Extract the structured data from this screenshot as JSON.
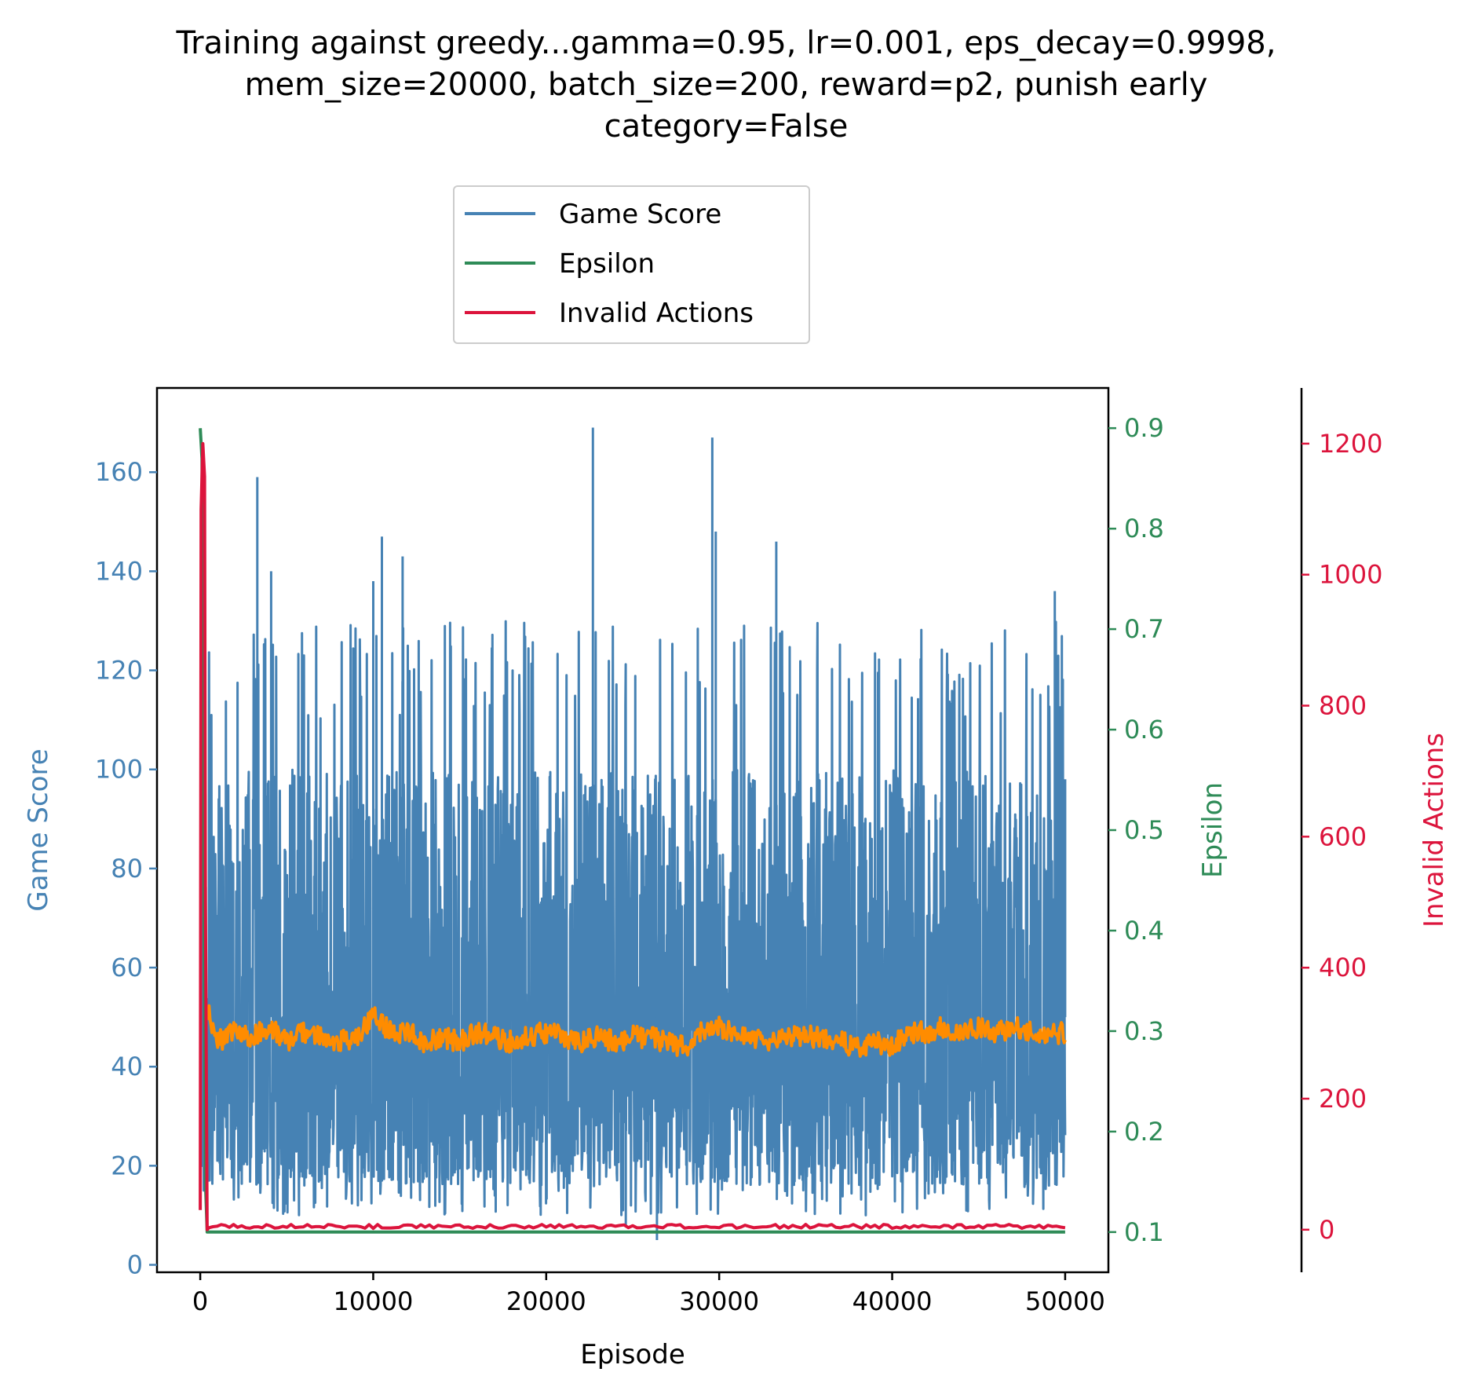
{
  "chart_data": {
    "type": "line",
    "title_lines": [
      "Training against greedy...gamma=0.95, lr=0.001, eps_decay=0.9998,",
      "mem_size=20000, batch_size=200, reward=p2, punish early",
      "category=False"
    ],
    "xlabel": "Episode",
    "xlim": [
      -2500,
      52500
    ],
    "xticks": [
      0,
      10000,
      20000,
      30000,
      40000,
      50000
    ],
    "axes": {
      "score": {
        "label": "Game Score",
        "color": "#4682b4",
        "ylim": [
          -1.5,
          177
        ],
        "ticks": [
          0,
          20,
          40,
          60,
          80,
          100,
          120,
          140,
          160
        ]
      },
      "epsilon": {
        "label": "Epsilon",
        "color": "#2e8b57",
        "ylim": [
          0.06,
          0.94
        ],
        "ticks": [
          0.1,
          0.2,
          0.3,
          0.4,
          0.5,
          0.6,
          0.7,
          0.8,
          0.9
        ]
      },
      "invalid": {
        "label": "Invalid Actions",
        "color": "#dc143c",
        "ylim": [
          -65,
          1285
        ],
        "ticks": [
          0,
          200,
          400,
          600,
          800,
          1000,
          1200
        ]
      }
    },
    "legend": {
      "placement": "above-plot",
      "entries": [
        {
          "label": "Game Score",
          "color": "#4682b4"
        },
        {
          "label": "Epsilon",
          "color": "#2e8b57"
        },
        {
          "label": "Invalid Actions",
          "color": "#dc143c"
        }
      ]
    },
    "series": [
      {
        "name": "Game Score",
        "axis": "score",
        "color": "#4682b4",
        "band": {
          "x_start": 300,
          "x_end": 50000,
          "low_typical": 16,
          "high_typical": 110,
          "spike_min": 5,
          "spike_max": 169
        },
        "x": [
          0,
          50,
          100,
          150,
          200,
          250,
          300,
          3300,
          4100,
          10000,
          10500,
          11700,
          22700,
          24600,
          26400,
          29600,
          29800,
          33300,
          49400,
          50000
        ],
        "y": [
          40,
          118,
          20,
          70,
          15,
          50,
          95,
          159,
          140,
          138,
          147,
          143,
          169,
          8,
          5,
          167,
          148,
          146,
          136,
          98
        ]
      },
      {
        "name": "Epsilon",
        "axis": "epsilon",
        "color": "#2e8b57",
        "x": [
          0,
          100,
          200,
          300,
          400,
          50000
        ],
        "y": [
          0.9,
          0.87,
          0.5,
          0.15,
          0.1,
          0.1
        ]
      },
      {
        "name": "Invalid Actions",
        "axis": "invalid",
        "color": "#dc143c",
        "x": [
          0,
          50,
          150,
          250,
          300,
          400,
          500,
          10000,
          20000,
          30000,
          40000,
          50000
        ],
        "y": [
          30,
          1100,
          1200,
          1150,
          500,
          0,
          3,
          2,
          4,
          3,
          2,
          3
        ]
      },
      {
        "name": "",
        "axis": "score",
        "color": "#ff8c00",
        "x": [
          400,
          1000,
          2000,
          3000,
          4000,
          5000,
          6000,
          7000,
          8000,
          9000,
          10000,
          11000,
          12000,
          13000,
          14000,
          15000,
          16000,
          17000,
          18000,
          19000,
          20000,
          21000,
          22000,
          23000,
          24000,
          25000,
          26000,
          27000,
          28000,
          29000,
          30000,
          31000,
          32000,
          33000,
          34000,
          35000,
          36000,
          37000,
          38000,
          39000,
          40000,
          41000,
          42000,
          43000,
          44000,
          45000,
          46000,
          47000,
          48000,
          49000,
          50000
        ],
        "y": [
          52,
          45,
          47,
          46,
          48,
          45,
          47,
          46,
          45,
          46,
          50,
          47,
          47,
          45,
          46,
          45,
          47,
          46,
          45,
          46,
          47,
          46,
          45,
          46,
          45,
          46,
          46,
          45,
          44,
          47,
          48,
          47,
          46,
          45,
          46,
          46,
          46,
          45,
          44,
          45,
          44,
          47,
          47,
          48,
          47,
          48,
          47,
          48,
          47,
          46,
          47
        ],
        "noise": 2.2
      }
    ]
  }
}
